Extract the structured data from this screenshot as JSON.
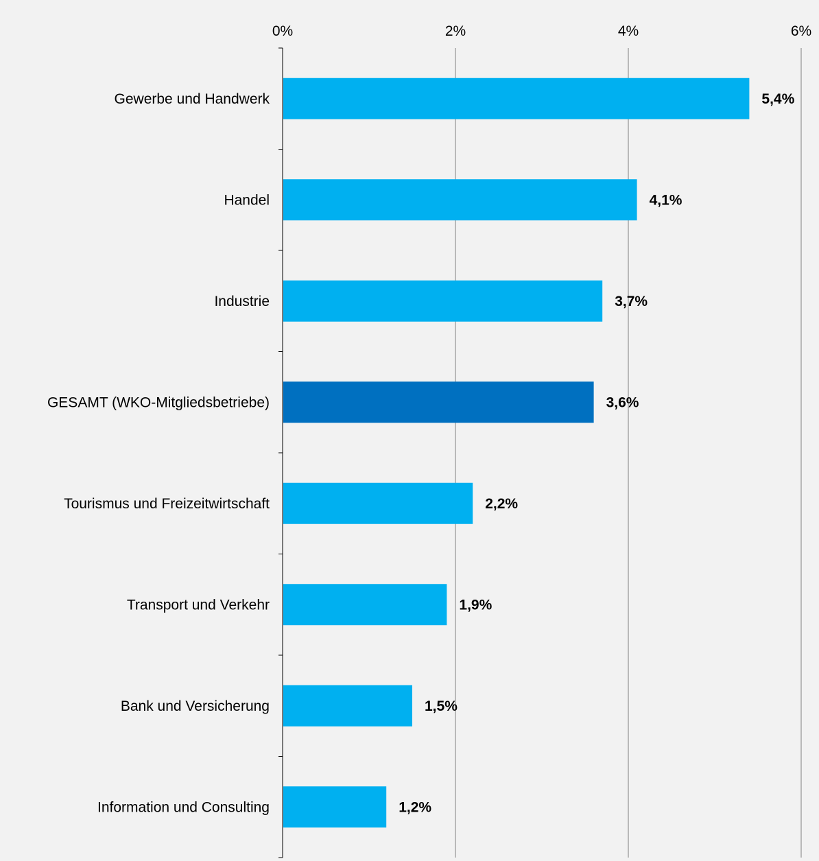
{
  "chart_data": {
    "type": "bar",
    "orientation": "horizontal",
    "title": "",
    "xlabel": "",
    "ylabel": "",
    "xlim": [
      0,
      6
    ],
    "x_ticks": [
      {
        "value": 0,
        "label": "0%"
      },
      {
        "value": 2,
        "label": "2%"
      },
      {
        "value": 4,
        "label": "4%"
      },
      {
        "value": 6,
        "label": "6%"
      }
    ],
    "x_axis_position": "top",
    "grid": "vertical",
    "legend": "none",
    "categories": [
      "Gewerbe und Handwerk",
      "Handel",
      "Industrie",
      "GESAMT (WKO-Mitgliedsbetriebe)",
      "Tourismus und Freizeitwirtschaft",
      "Transport und Verkehr",
      "Bank und Versicherung",
      "Information und Consulting"
    ],
    "values": [
      5.4,
      4.1,
      3.7,
      3.6,
      2.2,
      1.9,
      1.5,
      1.2
    ],
    "data_labels": [
      "5,4%",
      "4,1%",
      "3,7%",
      "3,6%",
      "2,2%",
      "1,9%",
      "1,5%",
      "1,2%"
    ],
    "highlight_category": "GESAMT (WKO-Mitgliedsbetriebe)",
    "colors": {
      "bar": "#00b0f0",
      "bar_highlight": "#0070c0",
      "background": "#f2f2f2",
      "grid": "#808080",
      "axis": "#000000"
    }
  }
}
